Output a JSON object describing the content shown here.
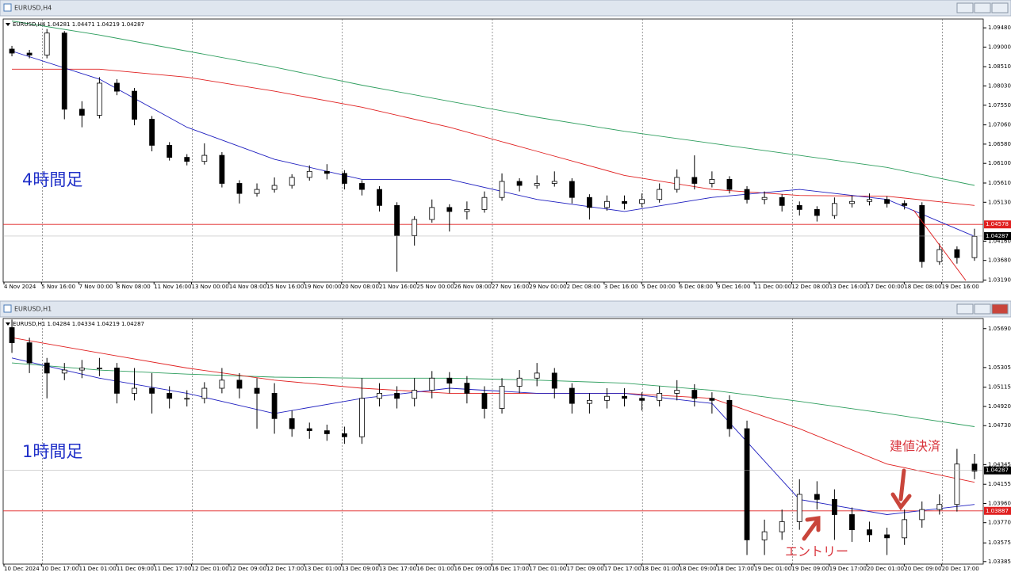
{
  "windows": [
    {
      "title": "EURUSD,H4",
      "header": "EURUSD,H4  1.04281 1.04471 1.04219 1.04287",
      "label": "4時間足",
      "ylim": [
        1.0314,
        1.097
      ],
      "yticks": [
        {
          "value": 1.0948,
          "label": "1.09480"
        },
        {
          "value": 1.09,
          "label": "1.09000"
        },
        {
          "value": 1.0851,
          "label": "1.08510"
        },
        {
          "value": 1.0803,
          "label": "1.08030"
        },
        {
          "value": 1.0755,
          "label": "1.07550"
        },
        {
          "value": 1.0706,
          "label": "1.07060"
        },
        {
          "value": 1.0658,
          "label": "1.06580"
        },
        {
          "value": 1.061,
          "label": "1.06100"
        },
        {
          "value": 1.0561,
          "label": "1.05610"
        },
        {
          "value": 1.0513,
          "label": "1.05130"
        },
        {
          "value": 1.0416,
          "label": "1.04160"
        },
        {
          "value": 1.0368,
          "label": "1.03680"
        },
        {
          "value": 1.0319,
          "label": "1.03190"
        }
      ],
      "level": 1.04578,
      "last": 1.04287,
      "xlabels": [
        "4 Nov 2024",
        "5 Nov 16:00",
        "7 Nov 00:00",
        "8 Nov 08:00",
        "11 Nov 16:00",
        "13 Nov 00:00",
        "14 Nov 08:00",
        "15 Nov 16:00",
        "19 Nov 00:00",
        "20 Nov 08:00",
        "21 Nov 16:00",
        "25 Nov 00:00",
        "26 Nov 08:00",
        "27 Nov 16:00",
        "29 Nov 00:00",
        "2 Dec 08:00",
        "3 Dec 16:00",
        "5 Dec 00:00",
        "6 Dec 08:00",
        "9 Dec 16:00",
        "11 Dec 00:00",
        "12 Dec 08:00",
        "13 Dec 16:00",
        "17 Dec 00:00",
        "18 Dec 08:00",
        "19 Dec 16:00"
      ],
      "candles": [
        [
          1.0895,
          1.0903,
          1.0877,
          1.0885
        ],
        [
          1.0885,
          1.0893,
          1.0872,
          1.088
        ],
        [
          1.088,
          1.0945,
          1.0872,
          1.0935
        ],
        [
          1.0935,
          1.094,
          1.072,
          1.0745
        ],
        [
          1.0745,
          1.0765,
          1.07,
          1.073
        ],
        [
          1.073,
          1.0825,
          1.0722,
          1.081
        ],
        [
          1.081,
          1.082,
          1.078,
          1.079
        ],
        [
          1.079,
          1.0798,
          1.0705,
          1.072
        ],
        [
          1.072,
          1.0728,
          1.064,
          1.0655
        ],
        [
          1.0655,
          1.0663,
          1.0617,
          1.0625
        ],
        [
          1.0625,
          1.0633,
          1.0605,
          1.0615
        ],
        [
          1.0615,
          1.066,
          1.0607,
          1.063
        ],
        [
          1.063,
          1.0638,
          1.055,
          1.056
        ],
        [
          1.056,
          1.0568,
          1.051,
          1.0535
        ],
        [
          1.0535,
          1.056,
          1.0527,
          1.0545
        ],
        [
          1.0545,
          1.0575,
          1.0537,
          1.0555
        ],
        [
          1.0555,
          1.0583,
          1.0547,
          1.0575
        ],
        [
          1.0575,
          1.0605,
          1.0567,
          1.059
        ],
        [
          1.059,
          1.0608,
          1.057,
          1.0585
        ],
        [
          1.0585,
          1.0593,
          1.0545,
          1.056
        ],
        [
          1.056,
          1.0568,
          1.053,
          1.0545
        ],
        [
          1.0545,
          1.0553,
          1.049,
          1.0505
        ],
        [
          1.0505,
          1.0513,
          1.034,
          1.043
        ],
        [
          1.043,
          1.0478,
          1.0405,
          1.047
        ],
        [
          1.047,
          1.052,
          1.0462,
          1.05
        ],
        [
          1.05,
          1.0508,
          1.044,
          1.049
        ],
        [
          1.049,
          1.0515,
          1.047,
          1.0495
        ],
        [
          1.0495,
          1.054,
          1.0487,
          1.0525
        ],
        [
          1.0525,
          1.0585,
          1.0517,
          1.0565
        ],
        [
          1.0565,
          1.0573,
          1.054,
          1.0555
        ],
        [
          1.0555,
          1.058,
          1.0547,
          1.056
        ],
        [
          1.056,
          1.059,
          1.0552,
          1.0565
        ],
        [
          1.0565,
          1.0573,
          1.051,
          1.0525
        ],
        [
          1.0525,
          1.0533,
          1.047,
          1.05
        ],
        [
          1.05,
          1.053,
          1.0492,
          1.0515
        ],
        [
          1.0515,
          1.053,
          1.0495,
          1.051
        ],
        [
          1.051,
          1.0535,
          1.05,
          1.052
        ],
        [
          1.052,
          1.056,
          1.0512,
          1.0545
        ],
        [
          1.0545,
          1.0595,
          1.0537,
          1.0575
        ],
        [
          1.0575,
          1.063,
          1.0545,
          1.056
        ],
        [
          1.056,
          1.059,
          1.055,
          1.057
        ],
        [
          1.057,
          1.0578,
          1.0535,
          1.0545
        ],
        [
          1.0545,
          1.0553,
          1.051,
          1.052
        ],
        [
          1.052,
          1.054,
          1.0508,
          1.0525
        ],
        [
          1.0525,
          1.0533,
          1.049,
          1.0505
        ],
        [
          1.0505,
          1.0515,
          1.048,
          1.0495
        ],
        [
          1.0495,
          1.0503,
          1.0465,
          1.048
        ],
        [
          1.048,
          1.0525,
          1.0472,
          1.051
        ],
        [
          1.051,
          1.053,
          1.05,
          1.0515
        ],
        [
          1.0515,
          1.0535,
          1.0505,
          1.052
        ],
        [
          1.052,
          1.0528,
          1.05,
          1.051
        ],
        [
          1.051,
          1.0518,
          1.0495,
          1.0505
        ],
        [
          1.0505,
          1.0513,
          1.035,
          1.0365
        ],
        [
          1.0365,
          1.041,
          1.0357,
          1.0395
        ],
        [
          1.0395,
          1.0403,
          1.036,
          1.0375
        ],
        [
          1.0375,
          1.0447,
          1.0367,
          1.0428
        ]
      ],
      "ma": [
        {
          "color": "#2e9e5e",
          "values": [
            1.0965,
            1.093,
            1.089,
            1.085,
            1.0805,
            1.0765,
            1.0725,
            1.069,
            1.066,
            1.063,
            1.06,
            1.0555
          ]
        },
        {
          "color": "#e02020",
          "values": [
            1.0845,
            1.0845,
            1.0825,
            1.079,
            1.075,
            1.07,
            1.064,
            1.058,
            1.0545,
            1.053,
            1.0528,
            1.0505
          ]
        },
        {
          "color": "#2020c0",
          "values": [
            1.089,
            1.082,
            1.07,
            1.062,
            1.057,
            1.057,
            1.052,
            1.049,
            1.0525,
            1.0545,
            1.052,
            1.0428
          ]
        }
      ]
    },
    {
      "title": "EURUSD,H1",
      "header": "EURUSD,H1  1.04284 1.04334 1.04219 1.04287",
      "label": "1時間足",
      "ylim": [
        1.0336,
        1.0579
      ],
      "yticks": [
        {
          "value": 1.0569,
          "label": "1.05690"
        },
        1.05305,
        {
          "value": 1.0511,
          "label": "1.05115"
        },
        {
          "value": 1.0492,
          "label": "1.04920"
        },
        {
          "value": 1.0473,
          "label": "1.04730"
        },
        1.04345,
        {
          "value": 1.0415,
          "label": "1.04155"
        },
        {
          "value": 1.0396,
          "label": "1.03960"
        },
        {
          "value": 1.0377,
          "label": "1.03770"
        },
        {
          "value": 1.0357,
          "label": "1.03575"
        },
        1.03385
      ],
      "level": 1.03887,
      "last": 1.04287,
      "xlabels": [
        "10 Dec 2024",
        "10 Dec 17:00",
        "11 Dec 01:00",
        "11 Dec 09:00",
        "11 Dec 17:00",
        "12 Dec 01:00",
        "12 Dec 09:00",
        "12 Dec 17:00",
        "13 Dec 01:00",
        "13 Dec 09:00",
        "13 Dec 17:00",
        "16 Dec 01:00",
        "16 Dec 09:00",
        "16 Dec 17:00",
        "17 Dec 01:00",
        "17 Dec 09:00",
        "17 Dec 17:00",
        "18 Dec 01:00",
        "18 Dec 09:00",
        "18 Dec 17:00",
        "19 Dec 01:00",
        "19 Dec 09:00",
        "19 Dec 17:00",
        "20 Dec 01:00",
        "20 Dec 09:00",
        "20 Dec 17:00"
      ],
      "candles": [
        [
          1.057,
          1.0578,
          1.0545,
          1.0555
        ],
        [
          1.0555,
          1.056,
          1.0525,
          1.0535
        ],
        [
          1.0535,
          1.054,
          1.05,
          1.0525
        ],
        [
          1.0525,
          1.0535,
          1.0518,
          1.0528
        ],
        [
          1.0528,
          1.0538,
          1.052,
          1.053
        ],
        [
          1.053,
          1.054,
          1.0522,
          1.053
        ],
        [
          1.053,
          1.0535,
          1.0495,
          1.0505
        ],
        [
          1.0505,
          1.053,
          1.0498,
          1.051
        ],
        [
          1.051,
          1.0525,
          1.0485,
          1.0505
        ],
        [
          1.0505,
          1.0512,
          1.049,
          1.05
        ],
        [
          1.05,
          1.0508,
          1.0492,
          1.05
        ],
        [
          1.05,
          1.0516,
          1.0495,
          1.051
        ],
        [
          1.051,
          1.053,
          1.0505,
          1.0518
        ],
        [
          1.0518,
          1.0525,
          1.05,
          1.051
        ],
        [
          1.051,
          1.052,
          1.047,
          1.0505
        ],
        [
          1.0505,
          1.0515,
          1.0465,
          1.048
        ],
        [
          1.048,
          1.0488,
          1.0462,
          1.047
        ],
        [
          1.047,
          1.0476,
          1.046,
          1.0468
        ],
        [
          1.0468,
          1.0474,
          1.0458,
          1.0465
        ],
        [
          1.0465,
          1.0472,
          1.0455,
          1.0462
        ],
        [
          1.0462,
          1.052,
          1.0455,
          1.05
        ],
        [
          1.05,
          1.0515,
          1.0492,
          1.0505
        ],
        [
          1.0505,
          1.0512,
          1.049,
          1.05
        ],
        [
          1.05,
          1.052,
          1.0492,
          1.0508
        ],
        [
          1.0508,
          1.0527,
          1.05,
          1.052
        ],
        [
          1.052,
          1.0526,
          1.0505,
          1.0515
        ],
        [
          1.0515,
          1.0522,
          1.0495,
          1.0505
        ],
        [
          1.0505,
          1.0512,
          1.048,
          1.049
        ],
        [
          1.049,
          1.052,
          1.0485,
          1.0512
        ],
        [
          1.0512,
          1.0528,
          1.0505,
          1.052
        ],
        [
          1.052,
          1.0535,
          1.0512,
          1.0525
        ],
        [
          1.0525,
          1.053,
          1.05,
          1.051
        ],
        [
          1.051,
          1.0515,
          1.0485,
          1.0495
        ],
        [
          1.0495,
          1.0505,
          1.0485,
          1.0498
        ],
        [
          1.0498,
          1.051,
          1.049,
          1.0502
        ],
        [
          1.0502,
          1.051,
          1.0492,
          1.05
        ],
        [
          1.05,
          1.0506,
          1.0488,
          1.0498
        ],
        [
          1.0498,
          1.0512,
          1.0492,
          1.0505
        ],
        [
          1.0505,
          1.0518,
          1.0498,
          1.0508
        ],
        [
          1.0508,
          1.0514,
          1.0492,
          1.05
        ],
        [
          1.05,
          1.0506,
          1.0485,
          1.0498
        ],
        [
          1.0498,
          1.0503,
          1.0462,
          1.047
        ],
        [
          1.047,
          1.0478,
          1.0345,
          1.036
        ],
        [
          1.036,
          1.038,
          1.0345,
          1.0368
        ],
        [
          1.0368,
          1.039,
          1.036,
          1.0378
        ],
        [
          1.0378,
          1.042,
          1.037,
          1.0405
        ],
        [
          1.0405,
          1.0418,
          1.039,
          1.04
        ],
        [
          1.04,
          1.041,
          1.036,
          1.0385
        ],
        [
          1.0385,
          1.0392,
          1.0358,
          1.037
        ],
        [
          1.037,
          1.0378,
          1.0358,
          1.0365
        ],
        [
          1.0365,
          1.0372,
          1.0345,
          1.0362
        ],
        [
          1.0362,
          1.039,
          1.0355,
          1.038
        ],
        [
          1.038,
          1.0398,
          1.0372,
          1.039
        ],
        [
          1.039,
          1.0405,
          1.0385,
          1.0395
        ],
        [
          1.0395,
          1.045,
          1.0388,
          1.0435
        ],
        [
          1.0435,
          1.0445,
          1.042,
          1.0428
        ]
      ],
      "ma": [
        {
          "color": "#2e9e5e",
          "values": [
            1.0535,
            1.0528,
            1.0524,
            1.0521,
            1.052,
            1.052,
            1.0518,
            1.0515,
            1.0508,
            1.0497,
            1.0485,
            1.0472
          ]
        },
        {
          "color": "#e02020",
          "values": [
            1.056,
            1.0545,
            1.053,
            1.0518,
            1.051,
            1.0505,
            1.0505,
            1.0505,
            1.05,
            1.047,
            1.0435,
            1.0417
          ]
        },
        {
          "color": "#2020c0",
          "values": [
            1.054,
            1.052,
            1.0505,
            1.0485,
            1.05,
            1.051,
            1.0505,
            1.0505,
            1.0495,
            1.04,
            1.0385,
            1.0395
          ]
        }
      ]
    }
  ],
  "annotations": {
    "exit": "建値決済",
    "entry": "エントリー"
  }
}
